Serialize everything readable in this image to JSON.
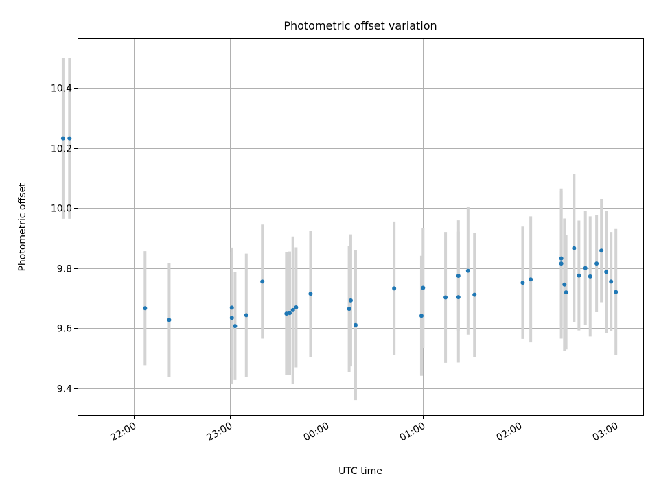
{
  "chart_data": {
    "type": "scatter",
    "title": "Photometric offset variation",
    "xlabel": "UTC time",
    "ylabel": "Photometric offset",
    "x_unit": "UTC hours",
    "xlim": [
      "21:25",
      "03:17"
    ],
    "ylim": [
      9.31,
      10.565
    ],
    "x_ticks": [
      "22:00",
      "23:00",
      "00:00",
      "01:00",
      "02:00",
      "03:00"
    ],
    "y_ticks": [
      9.4,
      9.6,
      9.8,
      10.0,
      10.2,
      10.4
    ],
    "grid": true,
    "colors": {
      "point": "#1f77b4",
      "errorbar": "#d3d3d3"
    },
    "series": [
      {
        "points": [
          {
            "x": "21:16",
            "y": 10.232,
            "yerr": 0.268
          },
          {
            "x": "21:20",
            "y": 10.232,
            "yerr": 0.268
          },
          {
            "x": "22:07",
            "y": 9.666,
            "yerr": 0.19
          },
          {
            "x": "22:22",
            "y": 9.627,
            "yerr": 0.19
          },
          {
            "x": "23:01",
            "y": 9.668,
            "yerr": 0.2
          },
          {
            "x": "23:01",
            "y": 9.634,
            "yerr": 0.22
          },
          {
            "x": "23:03",
            "y": 9.607,
            "yerr": 0.18
          },
          {
            "x": "23:10",
            "y": 9.643,
            "yerr": 0.205
          },
          {
            "x": "23:20",
            "y": 9.755,
            "yerr": 0.19
          },
          {
            "x": "23:35",
            "y": 9.648,
            "yerr": 0.205
          },
          {
            "x": "23:37",
            "y": 9.65,
            "yerr": 0.205
          },
          {
            "x": "23:39",
            "y": 9.66,
            "yerr": 0.245
          },
          {
            "x": "23:41",
            "y": 9.669,
            "yerr": 0.2
          },
          {
            "x": "23:50",
            "y": 9.714,
            "yerr": 0.21
          },
          {
            "x": "00:14",
            "y": 9.664,
            "yerr": 0.21
          },
          {
            "x": "00:15",
            "y": 9.692,
            "yerr": 0.22
          },
          {
            "x": "00:18",
            "y": 9.61,
            "yerr": 0.25
          },
          {
            "x": "00:42",
            "y": 9.732,
            "yerr": 0.223
          },
          {
            "x": "00:59",
            "y": 9.641,
            "yerr": 0.2
          },
          {
            "x": "01:00",
            "y": 9.734,
            "yerr": 0.2
          },
          {
            "x": "01:14",
            "y": 9.702,
            "yerr": 0.218
          },
          {
            "x": "01:22",
            "y": 9.774,
            "yerr": 0.185
          },
          {
            "x": "01:22",
            "y": 9.703,
            "yerr": 0.218
          },
          {
            "x": "01:28",
            "y": 9.791,
            "yerr": 0.213
          },
          {
            "x": "01:32",
            "y": 9.711,
            "yerr": 0.207
          },
          {
            "x": "02:02",
            "y": 9.751,
            "yerr": 0.187
          },
          {
            "x": "02:07",
            "y": 9.762,
            "yerr": 0.21
          },
          {
            "x": "02:26",
            "y": 9.815,
            "yerr": 0.25
          },
          {
            "x": "02:26",
            "y": 9.832,
            "yerr": 0.225
          },
          {
            "x": "02:28",
            "y": 9.745,
            "yerr": 0.22
          },
          {
            "x": "02:29",
            "y": 9.719,
            "yerr": 0.19
          },
          {
            "x": "02:34",
            "y": 9.866,
            "yerr": 0.247
          },
          {
            "x": "02:37",
            "y": 9.775,
            "yerr": 0.183
          },
          {
            "x": "02:41",
            "y": 9.8,
            "yerr": 0.19
          },
          {
            "x": "02:44",
            "y": 9.772,
            "yerr": 0.2
          },
          {
            "x": "02:48",
            "y": 9.815,
            "yerr": 0.162
          },
          {
            "x": "02:51",
            "y": 9.858,
            "yerr": 0.172
          },
          {
            "x": "02:54",
            "y": 9.787,
            "yerr": 0.203
          },
          {
            "x": "02:57",
            "y": 9.755,
            "yerr": 0.165
          },
          {
            "x": "03:00",
            "y": 9.72,
            "yerr": 0.21
          }
        ]
      }
    ]
  }
}
